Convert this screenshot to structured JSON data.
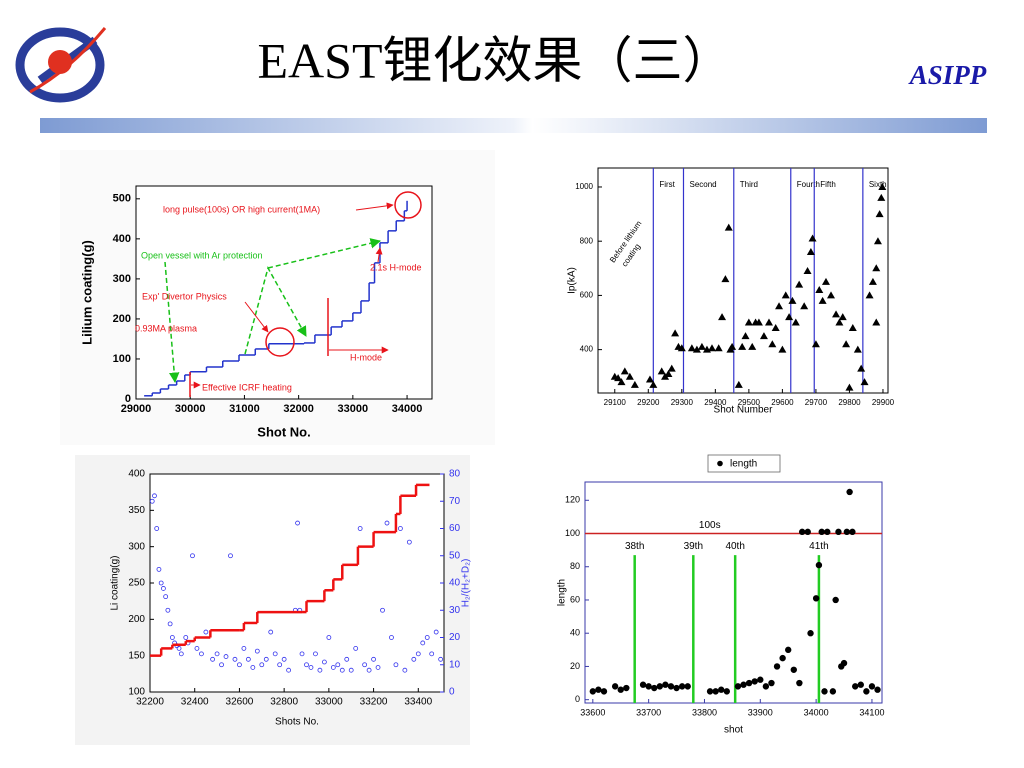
{
  "header": {
    "title": "EAST锂化效果（三）",
    "org": "ASIPP"
  },
  "chart_data": [
    {
      "type": "line",
      "x_label": "Shot No.",
      "y_label": "Lilium coating(g)",
      "step": true,
      "xlim": [
        29000,
        34460
      ],
      "ylim": [
        0,
        532
      ],
      "xticks": [
        29000,
        30000,
        31000,
        32000,
        33000,
        34000
      ],
      "yticks": [
        0,
        100,
        200,
        300,
        400,
        500
      ],
      "series": [
        {
          "color": "#2233cc",
          "x": [
            29150,
            29300,
            29450,
            29600,
            29750,
            29900,
            30000,
            30300,
            30600,
            30900,
            31200,
            31450,
            32100,
            32300,
            32600,
            32800,
            33000,
            33150,
            33300,
            33400,
            33500,
            33650,
            33800,
            33950,
            34000
          ],
          "values": [
            8,
            15,
            25,
            35,
            45,
            60,
            68,
            80,
            95,
            110,
            125,
            138,
            140,
            160,
            180,
            195,
            215,
            245,
            290,
            340,
            390,
            420,
            445,
            470,
            495
          ]
        }
      ],
      "annotations": [
        {
          "text": "long pulse(100s) OR high current(1MA)",
          "color": "#e8141b"
        },
        {
          "text": "Open vessel with Ar protection",
          "color": "#18c018"
        },
        {
          "text": "2.1s H-mode",
          "color": "#e8141b"
        },
        {
          "text": "Exp' Divertor Physics",
          "color": "#e8141b"
        },
        {
          "text": "0.93MA plasma",
          "color": "#e8141b"
        },
        {
          "text": "H-mode",
          "color": "#e8141b"
        },
        {
          "text": "Effective ICRF heating",
          "color": "#e8141b"
        }
      ]
    },
    {
      "type": "scatter",
      "x_label": "Shot Number",
      "y_label": "Ip(kA)",
      "marker": "triangle",
      "color": "#000000",
      "xlim": [
        29050,
        29915
      ],
      "ylim": [
        240,
        1070
      ],
      "xticks": [
        29100,
        29200,
        29300,
        29400,
        29500,
        29600,
        29700,
        29800,
        29900
      ],
      "yticks": [
        400,
        600,
        800,
        1000
      ],
      "x": [
        29100,
        29110,
        29120,
        29130,
        29145,
        29160,
        29205,
        29215,
        29240,
        29250,
        29260,
        29270,
        29280,
        29290,
        29300,
        29330,
        29345,
        29360,
        29375,
        29390,
        29410,
        29420,
        29430,
        29440,
        29445,
        29450,
        29470,
        29480,
        29490,
        29500,
        29510,
        29520,
        29530,
        29545,
        29560,
        29570,
        29580,
        29590,
        29600,
        29610,
        29620,
        29630,
        29640,
        29650,
        29665,
        29675,
        29685,
        29690,
        29700,
        29710,
        29720,
        29730,
        29745,
        29760,
        29770,
        29780,
        29790,
        29800,
        29810,
        29825,
        29835,
        29845,
        29860,
        29870,
        29880,
        29885,
        29890,
        29895,
        29898,
        29880
      ],
      "values": [
        300,
        295,
        280,
        320,
        300,
        270,
        290,
        270,
        320,
        300,
        310,
        330,
        460,
        410,
        405,
        405,
        400,
        410,
        400,
        405,
        405,
        520,
        660,
        850,
        400,
        410,
        270,
        410,
        450,
        500,
        410,
        500,
        500,
        450,
        500,
        420,
        480,
        560,
        400,
        600,
        520,
        580,
        500,
        640,
        560,
        690,
        760,
        810,
        420,
        620,
        580,
        650,
        600,
        530,
        500,
        520,
        420,
        260,
        480,
        400,
        330,
        280,
        600,
        650,
        700,
        800,
        900,
        960,
        1000,
        500
      ],
      "phase_color": "#3333cc",
      "phases": [
        {
          "label": "First",
          "x": 29215
        },
        {
          "label": "Second",
          "x": 29305
        },
        {
          "label": "Third",
          "x": 29455
        },
        {
          "label": "Fourth",
          "x": 29625
        },
        {
          "label": "Fifth",
          "x": 29695
        },
        {
          "label": "Sixth",
          "x": 29840
        }
      ],
      "annotations": [
        "Before lithium",
        "coating"
      ]
    },
    {
      "type": "line",
      "x_label": "Shots No.",
      "y_label": "Li coating(g)",
      "y2_label": "H₂/(H₂+D₂)",
      "xlim": [
        32200,
        33515
      ],
      "ylim": [
        100,
        400
      ],
      "y2lim": [
        0,
        80
      ],
      "xticks": [
        32200,
        32400,
        32600,
        32800,
        33000,
        33200,
        33400
      ],
      "yticks": [
        100,
        150,
        200,
        250,
        300,
        350,
        400
      ],
      "y2ticks": [
        0,
        10,
        20,
        30,
        40,
        50,
        60,
        70,
        80
      ],
      "series": [
        {
          "color": "#ee1111",
          "step": true,
          "x": [
            32200,
            32250,
            32300,
            32360,
            32400,
            32470,
            32600,
            32620,
            32680,
            32880,
            32900,
            32980,
            33020,
            33060,
            33130,
            33200,
            33300,
            33320,
            33390,
            33450
          ],
          "values": [
            150,
            160,
            165,
            170,
            175,
            185,
            185,
            195,
            210,
            210,
            225,
            240,
            255,
            275,
            300,
            320,
            345,
            370,
            385,
            385
          ]
        },
        {
          "color": "#3333ee",
          "axis": "y2",
          "marker": "circle",
          "x": [
            32210,
            32220,
            32230,
            32240,
            32250,
            32260,
            32270,
            32280,
            32290,
            32300,
            32310,
            32320,
            32330,
            32340,
            32360,
            32370,
            32390,
            32410,
            32430,
            32450,
            32480,
            32500,
            32520,
            32540,
            32560,
            32580,
            32600,
            32620,
            32640,
            32660,
            32680,
            32700,
            32720,
            32740,
            32760,
            32780,
            32800,
            32820,
            32850,
            32860,
            32870,
            32880,
            32900,
            32920,
            32940,
            32960,
            32980,
            33000,
            33020,
            33040,
            33060,
            33080,
            33100,
            33120,
            33140,
            33160,
            33180,
            33200,
            33220,
            33240,
            33260,
            33280,
            33300,
            33320,
            33340,
            33360,
            33380,
            33400,
            33420,
            33440,
            33460,
            33480,
            33500
          ],
          "values": [
            70,
            72,
            60,
            45,
            40,
            38,
            35,
            30,
            25,
            20,
            18,
            17,
            16,
            14,
            20,
            18,
            50,
            16,
            14,
            22,
            12,
            14,
            10,
            13,
            50,
            12,
            10,
            16,
            12,
            9,
            15,
            10,
            12,
            22,
            14,
            10,
            12,
            8,
            30,
            62,
            30,
            14,
            10,
            9,
            14,
            8,
            11,
            20,
            9,
            10,
            8,
            12,
            8,
            16,
            60,
            10,
            8,
            12,
            9,
            30,
            62,
            20,
            10,
            60,
            8,
            55,
            12,
            14,
            18,
            20,
            14,
            22,
            12
          ]
        }
      ]
    },
    {
      "type": "scatter",
      "x_label": "shot",
      "y_label": "length",
      "marker": "circle",
      "color": "#000000",
      "xlim": [
        33586,
        34118
      ],
      "ylim": [
        -2,
        131
      ],
      "xticks": [
        33600,
        33700,
        33800,
        33900,
        34000,
        34100
      ],
      "yticks": [
        0,
        20,
        40,
        60,
        80,
        100,
        120
      ],
      "series": [
        {
          "name": "length",
          "color": "#000000",
          "x": [
            33600,
            33610,
            33620,
            33640,
            33650,
            33660,
            33690,
            33700,
            33710,
            33720,
            33730,
            33740,
            33750,
            33760,
            33770,
            33810,
            33820,
            33830,
            33840,
            33860,
            33870,
            33880,
            33890,
            33900,
            33910,
            33920,
            33930,
            33940,
            33950,
            33960,
            33970,
            33975,
            33985,
            33990,
            34000,
            34005,
            34010,
            34015,
            34020,
            34030,
            34035,
            34040,
            34045,
            34050,
            34055,
            34060,
            34065,
            34070,
            34080,
            34090,
            34100,
            34110
          ],
          "values": [
            5,
            6,
            5,
            8,
            6,
            7,
            9,
            8,
            7,
            8,
            9,
            8,
            7,
            8,
            8,
            5,
            5,
            6,
            5,
            8,
            9,
            10,
            11,
            12,
            8,
            10,
            20,
            25,
            30,
            18,
            10,
            101,
            101,
            40,
            61,
            81,
            101,
            5,
            101,
            5,
            60,
            101,
            20,
            22,
            101,
            125,
            101,
            8,
            9,
            5,
            8,
            6
          ]
        }
      ],
      "reference": {
        "value": 100,
        "label": "100s",
        "color": "#cc2222"
      },
      "campaign_color": "#22cc22",
      "campaigns": [
        {
          "x": 33675,
          "label": "38th",
          "top": 87
        },
        {
          "x": 33780,
          "label": "39th",
          "top": 87
        },
        {
          "x": 33855,
          "label": "40th",
          "top": 87
        },
        {
          "x": 34005,
          "label": "41th",
          "top": 87
        }
      ]
    }
  ]
}
